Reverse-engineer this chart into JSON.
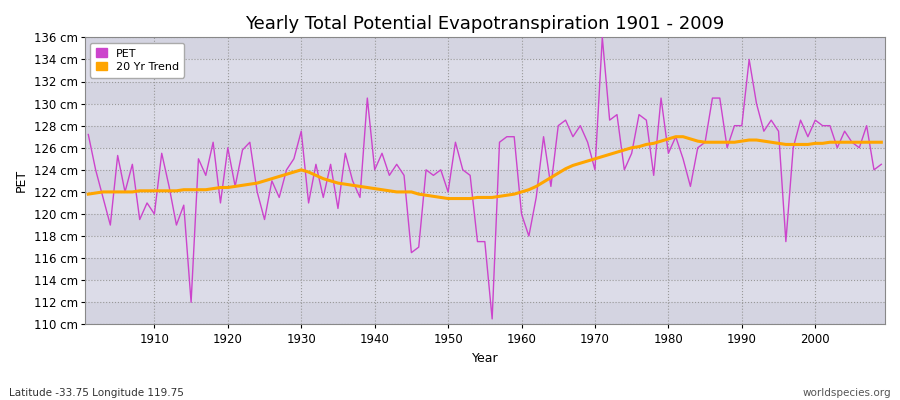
{
  "title": "Yearly Total Potential Evapotranspiration 1901 - 2009",
  "xlabel": "Year",
  "ylabel": "PET",
  "bottom_left_label": "Latitude -33.75 Longitude 119.75",
  "bottom_right_label": "worldspecies.org",
  "pet_color": "#cc44cc",
  "trend_color": "#ffa500",
  "outer_bg": "#ffffff",
  "plot_bg_color": "#dcdce8",
  "years": [
    1901,
    1902,
    1903,
    1904,
    1905,
    1906,
    1907,
    1908,
    1909,
    1910,
    1911,
    1912,
    1913,
    1914,
    1915,
    1916,
    1917,
    1918,
    1919,
    1920,
    1921,
    1922,
    1923,
    1924,
    1925,
    1926,
    1927,
    1928,
    1929,
    1930,
    1931,
    1932,
    1933,
    1934,
    1935,
    1936,
    1937,
    1938,
    1939,
    1940,
    1941,
    1942,
    1943,
    1944,
    1945,
    1946,
    1947,
    1948,
    1949,
    1950,
    1951,
    1952,
    1953,
    1954,
    1955,
    1956,
    1957,
    1958,
    1959,
    1960,
    1961,
    1962,
    1963,
    1964,
    1965,
    1966,
    1967,
    1968,
    1969,
    1970,
    1971,
    1972,
    1973,
    1974,
    1975,
    1976,
    1977,
    1978,
    1979,
    1980,
    1981,
    1982,
    1983,
    1984,
    1985,
    1986,
    1987,
    1988,
    1989,
    1990,
    1991,
    1992,
    1993,
    1994,
    1995,
    1996,
    1997,
    1998,
    1999,
    2000,
    2001,
    2002,
    2003,
    2004,
    2005,
    2006,
    2007,
    2008,
    2009
  ],
  "pet_values": [
    127.2,
    124.0,
    121.5,
    119.0,
    125.3,
    122.0,
    124.5,
    119.5,
    121.0,
    120.0,
    125.5,
    122.5,
    119.0,
    120.8,
    112.0,
    125.0,
    123.5,
    126.5,
    121.0,
    126.0,
    122.5,
    125.8,
    126.5,
    122.0,
    119.5,
    123.0,
    121.5,
    124.0,
    125.0,
    127.5,
    121.0,
    124.5,
    121.5,
    124.5,
    120.5,
    125.5,
    123.0,
    121.5,
    130.5,
    124.0,
    125.5,
    123.5,
    124.5,
    123.5,
    116.5,
    117.0,
    124.0,
    123.5,
    124.0,
    122.0,
    126.5,
    124.0,
    123.5,
    117.5,
    117.5,
    110.5,
    126.5,
    127.0,
    127.0,
    120.0,
    118.0,
    121.5,
    127.0,
    122.5,
    128.0,
    128.5,
    127.0,
    128.0,
    126.5,
    124.0,
    136.0,
    128.5,
    129.0,
    124.0,
    125.5,
    129.0,
    128.5,
    123.5,
    130.5,
    125.5,
    127.0,
    125.0,
    122.5,
    126.0,
    126.5,
    130.5,
    130.5,
    126.0,
    128.0,
    128.0,
    134.0,
    130.0,
    127.5,
    128.5,
    127.5,
    117.5,
    126.0,
    128.5,
    127.0,
    128.5,
    128.0,
    128.0,
    126.0,
    127.5,
    126.5,
    126.0,
    128.0,
    124.0,
    124.5
  ],
  "trend_values": [
    121.8,
    121.9,
    122.0,
    122.0,
    122.0,
    122.0,
    122.0,
    122.1,
    122.1,
    122.1,
    122.1,
    122.1,
    122.1,
    122.2,
    122.2,
    122.2,
    122.2,
    122.3,
    122.4,
    122.4,
    122.5,
    122.6,
    122.7,
    122.8,
    123.0,
    123.2,
    123.4,
    123.6,
    123.8,
    124.0,
    123.8,
    123.5,
    123.2,
    123.0,
    122.8,
    122.7,
    122.6,
    122.5,
    122.4,
    122.3,
    122.2,
    122.1,
    122.0,
    122.0,
    122.0,
    121.8,
    121.7,
    121.6,
    121.5,
    121.4,
    121.4,
    121.4,
    121.4,
    121.5,
    121.5,
    121.5,
    121.6,
    121.7,
    121.8,
    122.0,
    122.2,
    122.5,
    122.9,
    123.3,
    123.7,
    124.1,
    124.4,
    124.6,
    124.8,
    125.0,
    125.2,
    125.4,
    125.6,
    125.8,
    126.0,
    126.1,
    126.3,
    126.4,
    126.6,
    126.8,
    127.0,
    127.0,
    126.8,
    126.6,
    126.5,
    126.5,
    126.5,
    126.5,
    126.5,
    126.6,
    126.7,
    126.7,
    126.6,
    126.5,
    126.4,
    126.3,
    126.3,
    126.3,
    126.3,
    126.4,
    126.4,
    126.5,
    126.5,
    126.5,
    126.5,
    126.5,
    126.5,
    126.5,
    126.5
  ],
  "ylim": [
    110,
    136
  ],
  "yticks": [
    110,
    112,
    114,
    116,
    118,
    120,
    122,
    124,
    126,
    128,
    130,
    132,
    134,
    136
  ],
  "xticks": [
    1910,
    1920,
    1930,
    1940,
    1950,
    1960,
    1970,
    1980,
    1990,
    2000
  ],
  "title_fontsize": 13,
  "label_fontsize": 9,
  "tick_fontsize": 8.5
}
